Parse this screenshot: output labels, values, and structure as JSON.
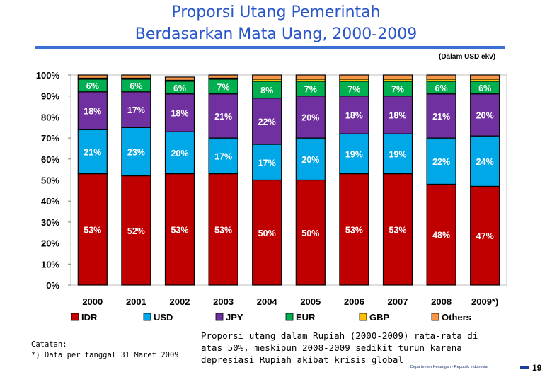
{
  "slide": {
    "title_line1": "Proporsi Utang Pemerintah",
    "title_line2": "Berdasarkan Mata Uang, 2000-2009",
    "unit_note": "(Dalam USD ekv)",
    "footnote_line1": "Catatan:",
    "footnote_line2": "*) Data per tanggal 31 Maret 2009",
    "caption": "Proporsi utang dalam Rupiah (2000-2009) rata-rata di atas 50%, meskipun 2008-2009 sedikit turun karena depresiasi Rupiah akibat krisis global",
    "department": "Departemen Keuangan - Republik Indonesia",
    "page_number": "19"
  },
  "chart_data": {
    "type": "bar",
    "stacked": "percent",
    "categories": [
      "2000",
      "2001",
      "2002",
      "2003",
      "2004",
      "2005",
      "2006",
      "2007",
      "2008",
      "2009*)"
    ],
    "ylim": [
      0,
      100
    ],
    "yticks": [
      "0%",
      "10%",
      "20%",
      "30%",
      "40%",
      "50%",
      "60%",
      "70%",
      "80%",
      "90%",
      "100%"
    ],
    "legend_position": "bottom",
    "series": [
      {
        "name": "IDR",
        "color": "#c00000",
        "values": [
          53,
          52,
          53,
          53,
          50,
          50,
          53,
          53,
          48,
          47
        ],
        "labels": [
          "53%",
          "52%",
          "53%",
          "53%",
          "50%",
          "50%",
          "53%",
          "53%",
          "48%",
          "47%"
        ]
      },
      {
        "name": "USD",
        "color": "#00a8e8",
        "values": [
          21,
          23,
          20,
          17,
          17,
          20,
          19,
          19,
          22,
          24
        ],
        "labels": [
          "21%",
          "23%",
          "20%",
          "17%",
          "17%",
          "20%",
          "19%",
          "19%",
          "22%",
          "24%"
        ]
      },
      {
        "name": "JPY",
        "color": "#7030a0",
        "values": [
          18,
          17,
          18,
          21,
          22,
          20,
          18,
          18,
          21,
          20
        ],
        "labels": [
          "18%",
          "17%",
          "18%",
          "21%",
          "22%",
          "20%",
          "18%",
          "18%",
          "21%",
          "20%"
        ]
      },
      {
        "name": "EUR",
        "color": "#00b050",
        "values": [
          6,
          6,
          6,
          7,
          8,
          7,
          7,
          7,
          6,
          6
        ],
        "labels": [
          "6%",
          "6%",
          "6%",
          "7%",
          "8%",
          "7%",
          "7%",
          "7%",
          "6%",
          "6%"
        ]
      },
      {
        "name": "GBP",
        "color": "#ffc000",
        "values": [
          0.5,
          0.5,
          0.5,
          0.5,
          1,
          1,
          1,
          1,
          1,
          1
        ]
      },
      {
        "name": "Others",
        "color": "#f79646",
        "values": [
          1.5,
          1.5,
          1.5,
          1.5,
          2,
          2,
          2,
          2,
          2,
          2
        ]
      }
    ]
  }
}
